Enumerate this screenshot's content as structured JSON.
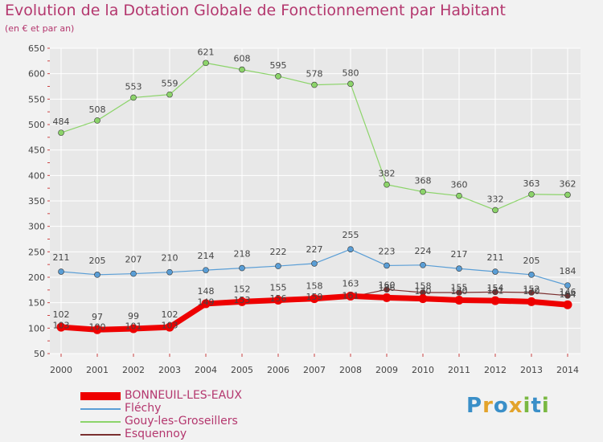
{
  "title": "Evolution de la Dotation Globale de Fonctionnement par Habitant",
  "subtitle": "(en € et par an)",
  "logo_text": "Proxiti",
  "colors": {
    "title": "#b4376e",
    "grid": "#ffffff",
    "plot_bg": "#e8e8e8",
    "axis_text": "#444444"
  },
  "chart_data": {
    "type": "line",
    "title": "Evolution de la Dotation Globale de Fonctionnement par Habitant",
    "subtitle": "(en € et par an)",
    "xlabel": "",
    "ylabel": "",
    "x": [
      "2000",
      "2001",
      "2002",
      "2003",
      "2004",
      "2005",
      "2006",
      "2007",
      "2008",
      "2009",
      "2010",
      "2011",
      "2012",
      "2013",
      "2014"
    ],
    "ylim": [
      50,
      650
    ],
    "yticks": [
      50,
      100,
      150,
      200,
      250,
      300,
      350,
      400,
      450,
      500,
      550,
      600,
      650
    ],
    "legend_position": "bottom-left",
    "series": [
      {
        "name": "BONNEUIL-LES-EAUX",
        "color": "#ee0000",
        "values": [
          102,
          97,
          99,
          102,
          148,
          152,
          155,
          158,
          163,
          160,
          158,
          155,
          154,
          152,
          146
        ],
        "labels": [
          "102",
          "97",
          "99",
          "102",
          "148",
          "152",
          "155",
          "158",
          "163",
          "160",
          "158",
          "155",
          "154",
          "152",
          "146"
        ]
      },
      {
        "name": "Fléchy",
        "color": "#5a9ed6",
        "values": [
          211,
          205,
          207,
          210,
          214,
          218,
          222,
          227,
          255,
          223,
          224,
          217,
          211,
          205,
          184
        ],
        "labels": [
          "211",
          "205",
          "207",
          "210",
          "214",
          "218",
          "222",
          "227",
          "255",
          "223",
          "224",
          "217",
          "211",
          "205",
          "184"
        ]
      },
      {
        "name": "Gouy-les-Groseillers",
        "color": "#8cd46a",
        "values": [
          484,
          508,
          553,
          559,
          621,
          608,
          595,
          578,
          580,
          382,
          368,
          360,
          332,
          363,
          362
        ],
        "labels": [
          "484",
          "508",
          "553",
          "559",
          "621",
          "608",
          "595",
          "578",
          "580",
          "382",
          "368",
          "360",
          "332",
          "363",
          "362"
        ]
      },
      {
        "name": "Esquennoy",
        "color": "#7a2f2f",
        "values": [
          103,
          100,
          101,
          103,
          149,
          153,
          156,
          159,
          161,
          176,
          170,
          170,
          171,
          170,
          164
        ],
        "labels": [
          "103",
          "100",
          "101",
          "103",
          "149",
          "153",
          "156",
          "159",
          "161",
          "176",
          "170",
          "170",
          "171",
          "170",
          "164"
        ]
      }
    ]
  }
}
